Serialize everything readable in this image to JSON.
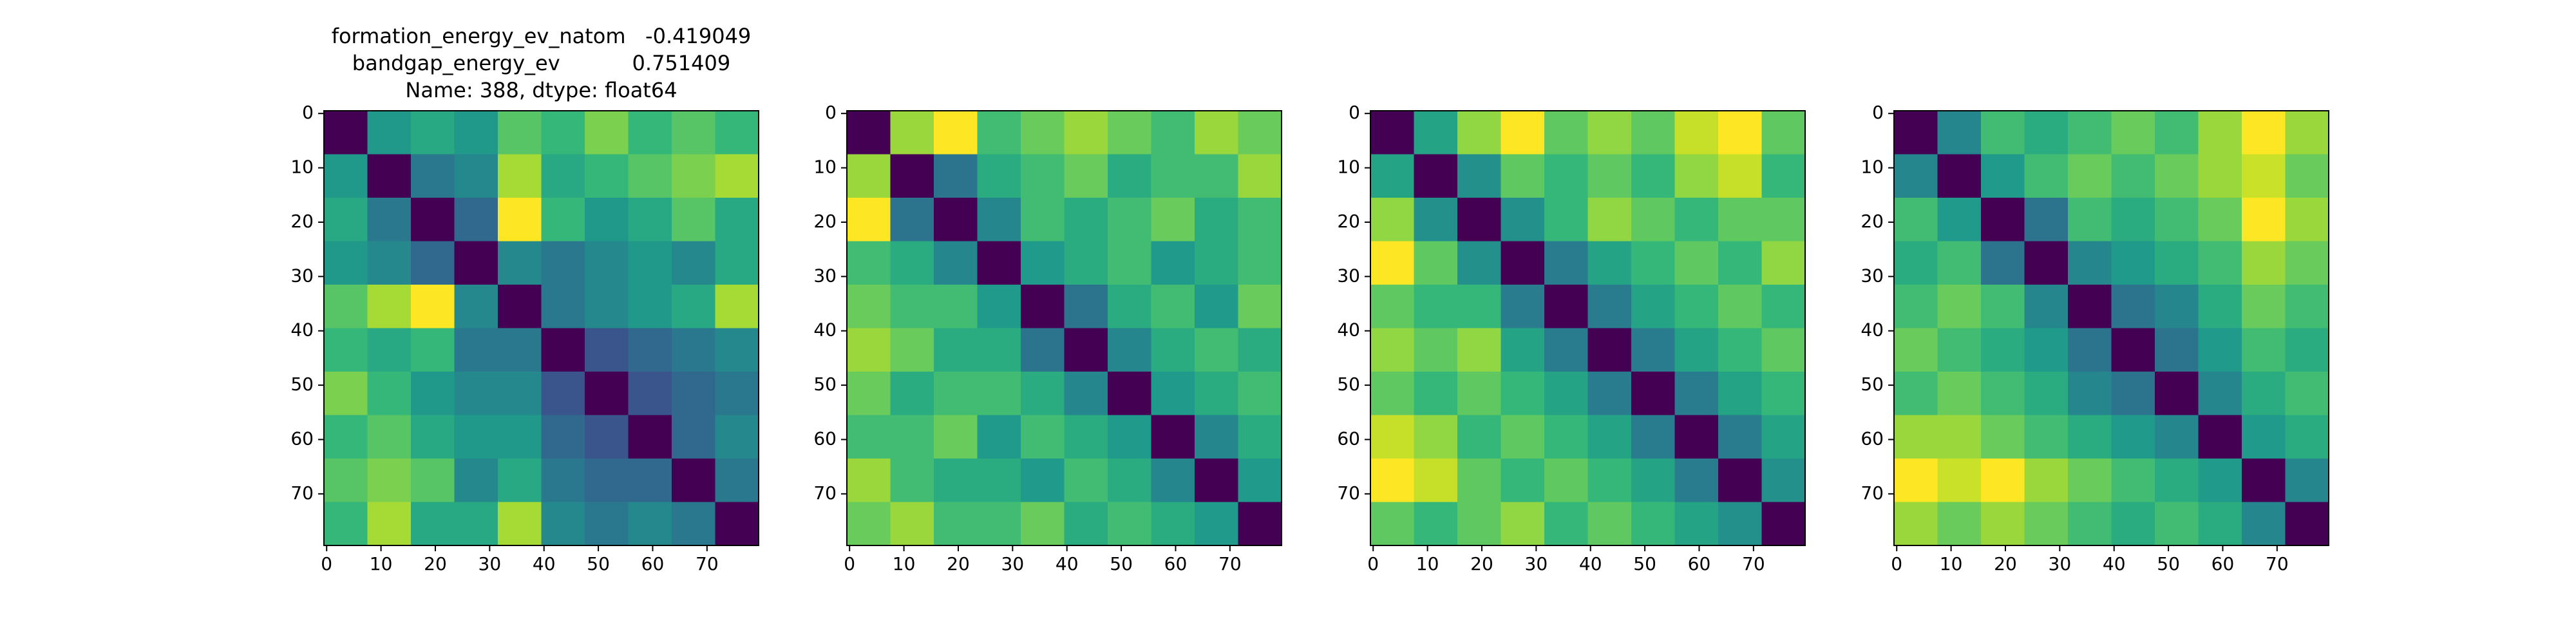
{
  "chart_data": [
    {
      "type": "heatmap",
      "colormap": "viridis",
      "title": [
        "formation_energy_ev_natom   -0.419049",
        "bandgap_energy_ev           0.751409",
        "Name: 388, dtype: float64"
      ],
      "xlim": [
        -0.5,
        79.5
      ],
      "ylim": [
        79.5,
        -0.5
      ],
      "xticks": [
        0,
        10,
        20,
        30,
        40,
        50,
        60,
        70
      ],
      "yticks": [
        0,
        10,
        20,
        30,
        40,
        50,
        60,
        70
      ],
      "z": [
        [
          0.05,
          0.45,
          0.5,
          0.45,
          0.6,
          0.55,
          0.65,
          0.55,
          0.6,
          0.55
        ],
        [
          0.45,
          0.05,
          0.35,
          0.4,
          0.7,
          0.5,
          0.55,
          0.6,
          0.65,
          0.7
        ],
        [
          0.5,
          0.35,
          0.05,
          0.3,
          0.8,
          0.55,
          0.45,
          0.5,
          0.6,
          0.5
        ],
        [
          0.45,
          0.4,
          0.3,
          0.05,
          0.4,
          0.35,
          0.4,
          0.45,
          0.4,
          0.5
        ],
        [
          0.6,
          0.7,
          0.8,
          0.4,
          0.05,
          0.35,
          0.4,
          0.45,
          0.5,
          0.7
        ],
        [
          0.55,
          0.5,
          0.55,
          0.35,
          0.35,
          0.05,
          0.25,
          0.3,
          0.35,
          0.4
        ],
        [
          0.65,
          0.55,
          0.45,
          0.4,
          0.4,
          0.25,
          0.05,
          0.25,
          0.3,
          0.35
        ],
        [
          0.55,
          0.6,
          0.5,
          0.45,
          0.45,
          0.3,
          0.25,
          0.05,
          0.3,
          0.4
        ],
        [
          0.6,
          0.65,
          0.6,
          0.4,
          0.5,
          0.35,
          0.3,
          0.3,
          0.05,
          0.35
        ],
        [
          0.55,
          0.7,
          0.5,
          0.5,
          0.7,
          0.4,
          0.35,
          0.4,
          0.35,
          0.05
        ]
      ]
    },
    {
      "type": "heatmap",
      "colormap": "viridis",
      "xlim": [
        -0.5,
        79.5
      ],
      "ylim": [
        79.5,
        -0.5
      ],
      "xticks": [
        0,
        10,
        20,
        30,
        40,
        50,
        60,
        70
      ],
      "yticks": [
        0,
        10,
        20,
        30,
        40,
        50,
        60,
        70
      ],
      "z": [
        [
          0.05,
          0.6,
          0.7,
          0.5,
          0.55,
          0.6,
          0.55,
          0.5,
          0.6,
          0.55
        ],
        [
          0.6,
          0.05,
          0.3,
          0.45,
          0.5,
          0.55,
          0.45,
          0.5,
          0.5,
          0.6
        ],
        [
          0.7,
          0.3,
          0.05,
          0.35,
          0.5,
          0.45,
          0.5,
          0.55,
          0.45,
          0.5
        ],
        [
          0.5,
          0.45,
          0.35,
          0.05,
          0.4,
          0.45,
          0.5,
          0.4,
          0.45,
          0.5
        ],
        [
          0.55,
          0.5,
          0.5,
          0.4,
          0.05,
          0.3,
          0.45,
          0.5,
          0.4,
          0.55
        ],
        [
          0.6,
          0.55,
          0.45,
          0.45,
          0.3,
          0.05,
          0.35,
          0.45,
          0.5,
          0.45
        ],
        [
          0.55,
          0.45,
          0.5,
          0.5,
          0.45,
          0.35,
          0.05,
          0.4,
          0.45,
          0.5
        ],
        [
          0.5,
          0.5,
          0.55,
          0.4,
          0.5,
          0.45,
          0.4,
          0.05,
          0.35,
          0.45
        ],
        [
          0.6,
          0.5,
          0.45,
          0.45,
          0.4,
          0.5,
          0.45,
          0.35,
          0.05,
          0.4
        ],
        [
          0.55,
          0.6,
          0.5,
          0.5,
          0.55,
          0.45,
          0.5,
          0.45,
          0.4,
          0.05
        ]
      ]
    },
    {
      "type": "heatmap",
      "colormap": "viridis",
      "xlim": [
        -0.5,
        79.5
      ],
      "ylim": [
        79.5,
        -0.5
      ],
      "xticks": [
        0,
        10,
        20,
        30,
        40,
        50,
        60,
        70
      ],
      "yticks": [
        0,
        10,
        20,
        30,
        40,
        50,
        60,
        70
      ],
      "z": [
        [
          0.05,
          0.4,
          0.55,
          0.65,
          0.5,
          0.55,
          0.5,
          0.6,
          0.65,
          0.5
        ],
        [
          0.4,
          0.05,
          0.35,
          0.5,
          0.45,
          0.5,
          0.45,
          0.55,
          0.6,
          0.45
        ],
        [
          0.55,
          0.35,
          0.05,
          0.35,
          0.45,
          0.55,
          0.5,
          0.45,
          0.5,
          0.5
        ],
        [
          0.65,
          0.5,
          0.35,
          0.05,
          0.3,
          0.4,
          0.45,
          0.5,
          0.45,
          0.55
        ],
        [
          0.5,
          0.45,
          0.45,
          0.3,
          0.05,
          0.3,
          0.4,
          0.45,
          0.5,
          0.45
        ],
        [
          0.55,
          0.5,
          0.55,
          0.4,
          0.3,
          0.05,
          0.3,
          0.4,
          0.45,
          0.5
        ],
        [
          0.5,
          0.45,
          0.5,
          0.45,
          0.4,
          0.3,
          0.05,
          0.3,
          0.4,
          0.45
        ],
        [
          0.6,
          0.55,
          0.45,
          0.5,
          0.45,
          0.4,
          0.3,
          0.05,
          0.3,
          0.4
        ],
        [
          0.65,
          0.6,
          0.5,
          0.45,
          0.5,
          0.45,
          0.4,
          0.3,
          0.05,
          0.35
        ],
        [
          0.5,
          0.45,
          0.5,
          0.55,
          0.45,
          0.5,
          0.45,
          0.4,
          0.35,
          0.05
        ]
      ]
    },
    {
      "type": "heatmap",
      "colormap": "viridis",
      "xlim": [
        -0.5,
        79.5
      ],
      "ylim": [
        79.5,
        -0.5
      ],
      "xticks": [
        0,
        10,
        20,
        30,
        40,
        50,
        60,
        70
      ],
      "yticks": [
        0,
        10,
        20,
        30,
        40,
        50,
        60,
        70
      ],
      "z": [
        [
          0.05,
          0.35,
          0.5,
          0.45,
          0.5,
          0.55,
          0.5,
          0.6,
          0.7,
          0.6
        ],
        [
          0.35,
          0.05,
          0.4,
          0.5,
          0.55,
          0.5,
          0.55,
          0.6,
          0.65,
          0.55
        ],
        [
          0.5,
          0.4,
          0.05,
          0.3,
          0.5,
          0.45,
          0.5,
          0.55,
          0.7,
          0.6
        ],
        [
          0.45,
          0.5,
          0.3,
          0.05,
          0.35,
          0.4,
          0.45,
          0.5,
          0.6,
          0.55
        ],
        [
          0.5,
          0.55,
          0.5,
          0.35,
          0.05,
          0.3,
          0.35,
          0.45,
          0.55,
          0.5
        ],
        [
          0.55,
          0.5,
          0.45,
          0.4,
          0.3,
          0.05,
          0.3,
          0.4,
          0.5,
          0.45
        ],
        [
          0.5,
          0.55,
          0.5,
          0.45,
          0.35,
          0.3,
          0.05,
          0.35,
          0.45,
          0.5
        ],
        [
          0.6,
          0.6,
          0.55,
          0.5,
          0.45,
          0.4,
          0.35,
          0.05,
          0.4,
          0.45
        ],
        [
          0.7,
          0.65,
          0.7,
          0.6,
          0.55,
          0.5,
          0.45,
          0.4,
          0.05,
          0.35
        ],
        [
          0.6,
          0.55,
          0.6,
          0.55,
          0.5,
          0.45,
          0.5,
          0.45,
          0.35,
          0.05
        ]
      ]
    }
  ]
}
